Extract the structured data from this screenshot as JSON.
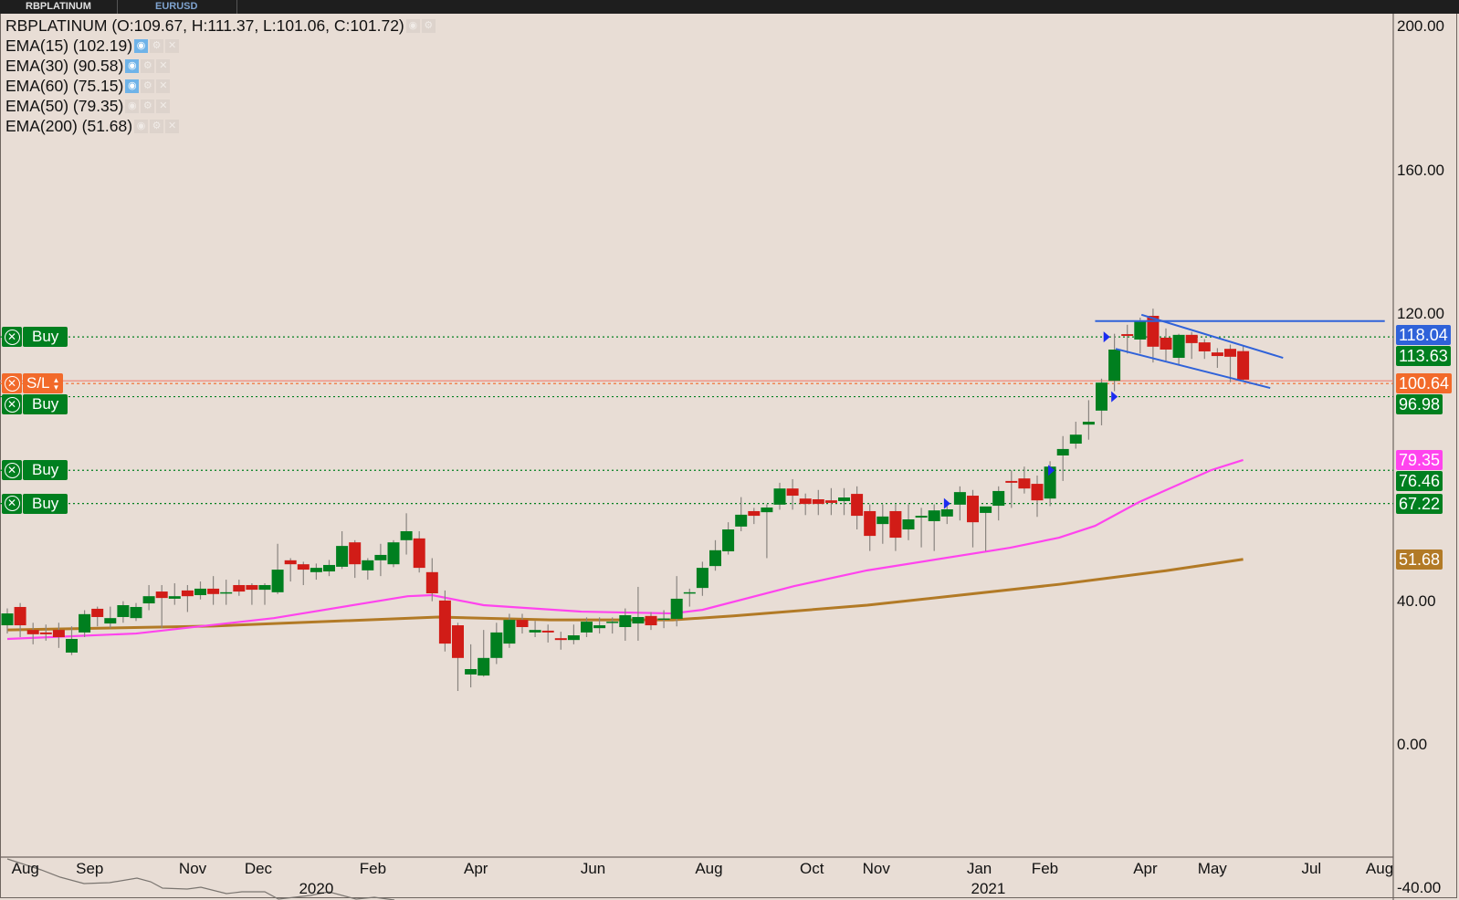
{
  "tabs": [
    {
      "label": "RBPLATINUM"
    },
    {
      "label": "EURUSD"
    }
  ],
  "legend": {
    "title": "RBPLATINUM (O:109.67, H:111.37, L:101.06, C:101.72)",
    "indicators": [
      {
        "label": "EMA(15) (102.19)",
        "visible": true
      },
      {
        "label": "EMA(30) (90.58)",
        "visible": true
      },
      {
        "label": "EMA(60) (75.15)",
        "visible": true
      },
      {
        "label": "EMA(50) (79.35)",
        "visible": false
      },
      {
        "label": "EMA(200) (51.68)",
        "visible": false
      }
    ],
    "icons": [
      "eye-icon",
      "gear-icon",
      "close-icon"
    ]
  },
  "colors": {
    "background": "#e8ddd5",
    "up": "#007f1f",
    "down": "#d11c17",
    "ema50": "#ff44ee",
    "ema200": "#b27a26",
    "trendline": "#2f62d9",
    "stoploss": "#f26a2a",
    "buy": "#007f1f"
  },
  "chart_data": {
    "type": "candlestick",
    "symbol": "RBPLATINUM",
    "ylim": [
      -40,
      200
    ],
    "y_ticks": [
      {
        "value": 200,
        "label": "200.00"
      },
      {
        "value": 160,
        "label": "160.00"
      },
      {
        "value": 120,
        "label": "120.00"
      },
      {
        "value": 40,
        "label": "40.00"
      },
      {
        "value": 0,
        "label": "0.00"
      },
      {
        "value": -40,
        "label": "-40.00"
      }
    ],
    "x_ticks": [
      {
        "week": 1.4,
        "label": "Aug"
      },
      {
        "week": 6.4,
        "label": "Sep"
      },
      {
        "week": 14.4,
        "label": "Nov"
      },
      {
        "week": 19.5,
        "label": "Dec"
      },
      {
        "week": 28.4,
        "label": "Feb"
      },
      {
        "week": 36.4,
        "label": "Apr"
      },
      {
        "week": 45.5,
        "label": "Jun"
      },
      {
        "week": 54.5,
        "label": "Aug"
      },
      {
        "week": 62.5,
        "label": "Oct"
      },
      {
        "week": 67.5,
        "label": "Nov"
      },
      {
        "week": 75.5,
        "label": "Jan"
      },
      {
        "week": 80.6,
        "label": "Feb"
      },
      {
        "week": 88.4,
        "label": "Apr"
      },
      {
        "week": 93.6,
        "label": "May"
      },
      {
        "week": 101.3,
        "label": "Jul"
      },
      {
        "week": 106.6,
        "label": "Aug"
      }
    ],
    "years": [
      {
        "week": 24,
        "label": "2020"
      },
      {
        "week": 76.2,
        "label": "2021"
      }
    ],
    "ohlc": [
      [
        33.3,
        38,
        31,
        36.6
      ],
      [
        38.4,
        39.5,
        30,
        33.3
      ],
      [
        32.0,
        34,
        28,
        30.8
      ],
      [
        31.3,
        33.5,
        29,
        30.8
      ],
      [
        32.0,
        34,
        27,
        30.0
      ],
      [
        25.7,
        33,
        25,
        29.5
      ],
      [
        31.3,
        37.5,
        30,
        36.4
      ],
      [
        37.9,
        38.5,
        33,
        35.6
      ],
      [
        33.8,
        38.5,
        32.5,
        35.3
      ],
      [
        35.6,
        40,
        34,
        38.9
      ],
      [
        35.3,
        39.5,
        34.5,
        38.4
      ],
      [
        39.4,
        44.5,
        37.5,
        41.4
      ],
      [
        42.7,
        44.5,
        32.5,
        40.9
      ],
      [
        40.7,
        45,
        39,
        41.4
      ],
      [
        43.0,
        44.5,
        37,
        41.4
      ],
      [
        41.7,
        45.5,
        40.5,
        43.5
      ],
      [
        43.5,
        47,
        39,
        42.0
      ],
      [
        42.2,
        46,
        39,
        42.5
      ],
      [
        44.5,
        46,
        41.5,
        42.7
      ],
      [
        44.5,
        45,
        39,
        43.2
      ],
      [
        43.2,
        45,
        39,
        44.5
      ],
      [
        42.5,
        56,
        42,
        48.8
      ],
      [
        51.4,
        52,
        45.5,
        50.3
      ],
      [
        50.3,
        51,
        44.5,
        48.8
      ],
      [
        48.1,
        50.5,
        46,
        49.3
      ],
      [
        48.3,
        51.5,
        47,
        50.1
      ],
      [
        49.6,
        59.5,
        49,
        55.4
      ],
      [
        56.4,
        57,
        46.5,
        50.3
      ],
      [
        48.6,
        52,
        46,
        51.4
      ],
      [
        51.4,
        56,
        47,
        52.9
      ],
      [
        50.3,
        57,
        49.5,
        56.4
      ],
      [
        57.0,
        64.5,
        53,
        59.5
      ],
      [
        57.5,
        59.5,
        48,
        49.3
      ],
      [
        48.1,
        52,
        40,
        42.2
      ],
      [
        40.2,
        43,
        26,
        28.2
      ],
      [
        33.3,
        34,
        15,
        24.2
      ],
      [
        19.6,
        28,
        16,
        21.1
      ],
      [
        19.3,
        32,
        19,
        24.2
      ],
      [
        24.2,
        34,
        22.5,
        31.3
      ],
      [
        28.2,
        36.5,
        27,
        34.8
      ],
      [
        34.8,
        36.5,
        31,
        32.8
      ],
      [
        31.3,
        34.5,
        30,
        32.0
      ],
      [
        31.8,
        33.5,
        28.5,
        31.3
      ],
      [
        29.7,
        31.5,
        26.5,
        29.2
      ],
      [
        29.2,
        33.5,
        28,
        30.5
      ],
      [
        31.3,
        35.5,
        30,
        34.3
      ],
      [
        32.5,
        35.5,
        31,
        33.3
      ],
      [
        34.1,
        35.5,
        31,
        34.3
      ],
      [
        32.8,
        38,
        29,
        36.1
      ],
      [
        33.8,
        44,
        29,
        35.6
      ],
      [
        35.9,
        37,
        32,
        33.3
      ],
      [
        35.1,
        37.5,
        32.5,
        35.2
      ],
      [
        35.1,
        47,
        33,
        40.7
      ],
      [
        42.2,
        43.5,
        38.5,
        42.5
      ],
      [
        43.7,
        51,
        41.5,
        49.3
      ],
      [
        49.8,
        57,
        48.5,
        54.2
      ],
      [
        53.9,
        62,
        53,
        60.0
      ],
      [
        60.8,
        69,
        59.5,
        64.1
      ],
      [
        65.1,
        66,
        61.5,
        63.8
      ],
      [
        64.8,
        67,
        52,
        66.1
      ],
      [
        66.9,
        73,
        65.5,
        71.4
      ],
      [
        71.4,
        74,
        65.5,
        69.4
      ],
      [
        68.6,
        70,
        64,
        67.1
      ],
      [
        68.4,
        71,
        64,
        67.1
      ],
      [
        68.1,
        71.5,
        64,
        67.4
      ],
      [
        67.9,
        71.5,
        64,
        68.9
      ],
      [
        69.9,
        72,
        60,
        63.8
      ],
      [
        65.1,
        67,
        54,
        58.2
      ],
      [
        61.5,
        67,
        56,
        63.6
      ],
      [
        65.1,
        67,
        54,
        57.7
      ],
      [
        60.0,
        67,
        57,
        62.8
      ],
      [
        63.3,
        66,
        55,
        63.8
      ],
      [
        62.3,
        67,
        54,
        65.3
      ],
      [
        63.6,
        67.5,
        61.5,
        65.6
      ],
      [
        66.9,
        72,
        62.5,
        70.4
      ],
      [
        69.4,
        71,
        55,
        62.0
      ],
      [
        64.6,
        66,
        54,
        66.4
      ],
      [
        66.6,
        72,
        62.5,
        70.7
      ],
      [
        73.5,
        76.5,
        66,
        73.0
      ],
      [
        74.2,
        77.5,
        70,
        71.4
      ],
      [
        72.7,
        75,
        63.5,
        68.1
      ],
      [
        68.6,
        79,
        66.5,
        77.5
      ],
      [
        80.6,
        86,
        73.5,
        82.4
      ],
      [
        83.9,
        90,
        82.5,
        86.4
      ],
      [
        89.2,
        96,
        85,
        90.0
      ],
      [
        93.1,
        102,
        89,
        100.9
      ],
      [
        101.4,
        114.5,
        98.5,
        110.1
      ],
      [
        114.4,
        117,
        109,
        113.9
      ],
      [
        112.9,
        119,
        109,
        118.0
      ],
      [
        119.5,
        121.5,
        106.5,
        110.9
      ],
      [
        113.4,
        116,
        107,
        110.1
      ],
      [
        107.8,
        114.5,
        106,
        114.2
      ],
      [
        114.2,
        115,
        107.5,
        111.9
      ],
      [
        112.1,
        113,
        107.5,
        109.6
      ],
      [
        109.3,
        110.5,
        105,
        108.3
      ],
      [
        110.3,
        111.5,
        101,
        108.1
      ],
      [
        109.67,
        111.37,
        101.06,
        101.72
      ]
    ],
    "ema50": [
      [
        0,
        29.5
      ],
      [
        10,
        31.0
      ],
      [
        20.7,
        35.3
      ],
      [
        31.1,
        41.4
      ],
      [
        33,
        41.7
      ],
      [
        37,
        38.9
      ],
      [
        44.6,
        37.1
      ],
      [
        51.7,
        36.6
      ],
      [
        54,
        37.6
      ],
      [
        61.1,
        44.2
      ],
      [
        66.8,
        48.6
      ],
      [
        77.9,
        54.9
      ],
      [
        81.7,
        57.7
      ],
      [
        84.5,
        61.0
      ],
      [
        87.9,
        67.6
      ],
      [
        93.5,
        76.5
      ],
      [
        96,
        79.35
      ]
    ],
    "ema200": [
      [
        0,
        32.0
      ],
      [
        16,
        33.1
      ],
      [
        33.5,
        35.6
      ],
      [
        42.2,
        34.8
      ],
      [
        51.7,
        34.8
      ],
      [
        56.4,
        35.9
      ],
      [
        66.8,
        38.9
      ],
      [
        81.7,
        44.7
      ],
      [
        90,
        48.5
      ],
      [
        96,
        51.68
      ]
    ],
    "trendlines": [
      {
        "name": "resistance-horizontal",
        "from": [
          84.5,
          118.04
        ],
        "to": [
          107,
          118.04
        ]
      },
      {
        "name": "channel-upper",
        "from": [
          88.1,
          119.8
        ],
        "to": [
          99.1,
          107.8
        ]
      },
      {
        "name": "channel-lower",
        "from": [
          86.1,
          110.3
        ],
        "to": [
          98.1,
          99.4
        ]
      }
    ],
    "signal_markers": [
      [
        72.9,
        67.22
      ],
      [
        81,
        76.46
      ],
      [
        85.3,
        113.63
      ],
      [
        85.9,
        96.98
      ]
    ]
  },
  "price_badges": [
    {
      "value": 118.04,
      "label": "118.04",
      "color": "#2f62d9"
    },
    {
      "value": 113.63,
      "label": "113.63",
      "color": "#007f1f"
    },
    {
      "value": 96.98,
      "label": "96.98",
      "color": "#007f1f"
    },
    {
      "value": 100.64,
      "label": "100.64",
      "color": "#f26a2a"
    },
    {
      "value": 79.35,
      "label": "79.35",
      "color": "#ff44ee"
    },
    {
      "value": 76.46,
      "label": "76.46",
      "color": "#007f1f"
    },
    {
      "value": 67.22,
      "label": "67.22",
      "color": "#007f1f"
    },
    {
      "value": 51.68,
      "label": "51.68",
      "color": "#b27a26"
    }
  ],
  "orders": [
    {
      "type": "Buy",
      "label": "Buy",
      "value": 113.63
    },
    {
      "type": "Buy",
      "label": "Buy",
      "value": 96.98
    },
    {
      "type": "S/L",
      "label": "S/L",
      "value": 100.64
    },
    {
      "type": "Buy",
      "label": "Buy",
      "value": 76.46
    },
    {
      "type": "Buy",
      "label": "Buy",
      "value": 67.22
    }
  ]
}
